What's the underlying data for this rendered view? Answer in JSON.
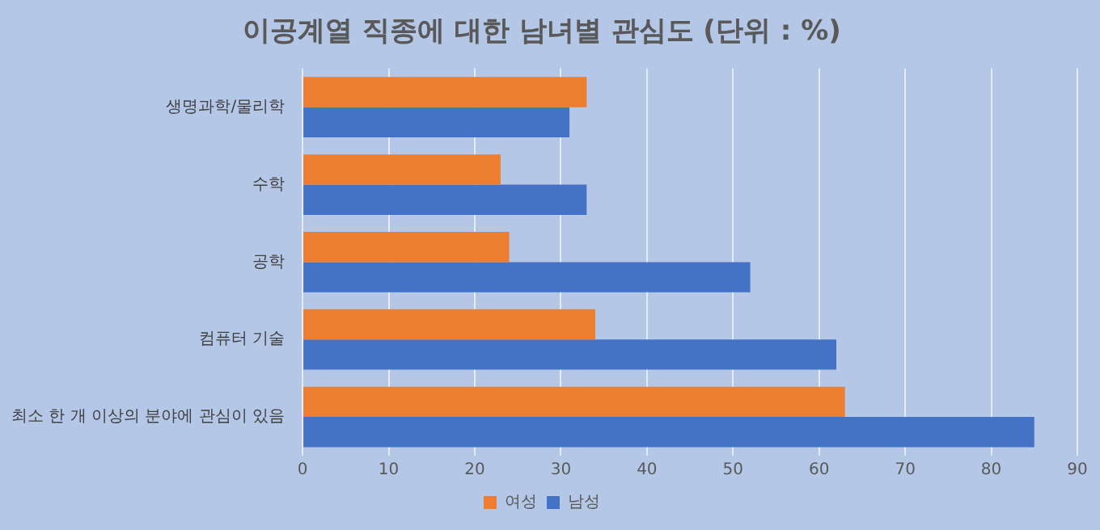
{
  "chart_data": {
    "type": "bar",
    "orientation": "horizontal",
    "title": "이공계열 직종에 대한 남녀별 관심도 (단위 : %)",
    "categories": [
      "생명과학/물리학",
      "수학",
      "공학",
      "컴퓨터 기술",
      "최소 한 개 이상의 분야에 관심이 있음"
    ],
    "series": [
      {
        "name": "여성",
        "color": "#ed7d31",
        "values": [
          33,
          23,
          24,
          34,
          63
        ]
      },
      {
        "name": "남성",
        "color": "#4472c4",
        "values": [
          31,
          33,
          52,
          62,
          85
        ]
      }
    ],
    "xlim": [
      0,
      90
    ],
    "xticks": [
      0,
      10,
      20,
      30,
      40,
      50,
      60,
      70,
      80,
      90
    ],
    "grid": "x",
    "legend": "bottom"
  }
}
